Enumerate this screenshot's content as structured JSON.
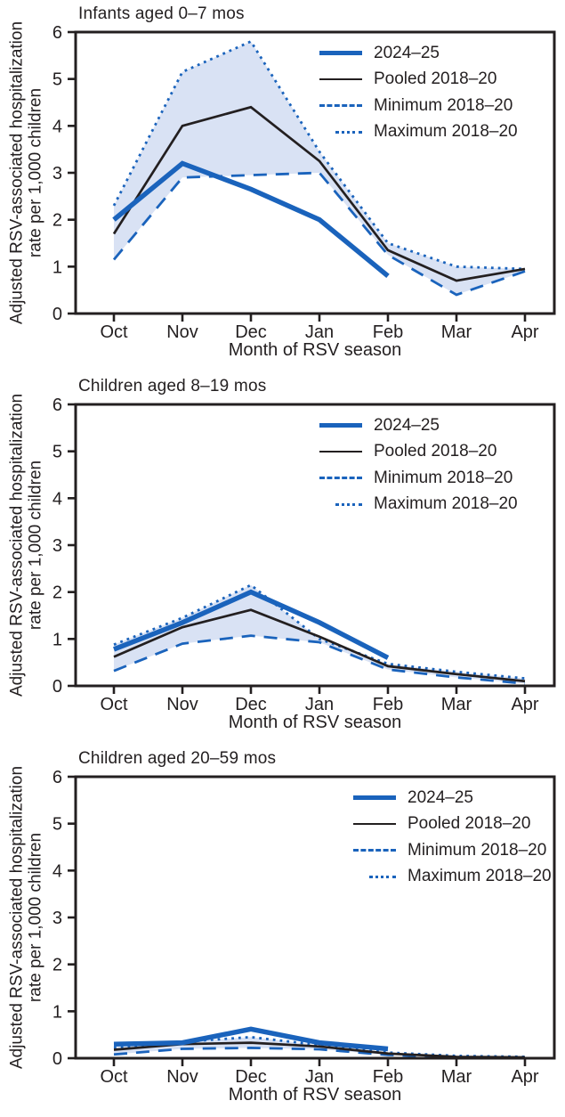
{
  "colors": {
    "blue": "#1A63BC",
    "black": "#231F20",
    "band_fill": "#D9E2F4"
  },
  "chart_data": [
    {
      "type": "line",
      "title": "Infants aged 0–7 mos",
      "xlabel": "Month of RSV season",
      "ylabel": "Adjusted RSV-associated hospitalization rate per 1,000 children",
      "ylabel_line1": "Adjusted RSV-associated hospitalization",
      "ylabel_line2": "rate per 1,000 children",
      "categories": [
        "Oct",
        "Nov",
        "Dec",
        "Jan",
        "Feb",
        "Mar",
        "Apr"
      ],
      "yticks": [
        0,
        1,
        2,
        3,
        4,
        5,
        6
      ],
      "ylim": [
        0,
        6
      ],
      "grid": "off",
      "legend_position": "top-right",
      "band_between": [
        "Minimum 2018–20",
        "Maximum 2018–20"
      ],
      "series": [
        {
          "name": "2024–25",
          "style": "thick-blue",
          "values": [
            2.0,
            3.2,
            2.65,
            2.0,
            0.8,
            null,
            null
          ]
        },
        {
          "name": "Pooled 2018–20",
          "style": "solid-black",
          "values": [
            1.7,
            4.0,
            4.4,
            3.25,
            1.35,
            0.7,
            0.95
          ]
        },
        {
          "name": "Minimum 2018–20",
          "style": "dashed-blue",
          "values": [
            1.15,
            2.9,
            2.95,
            3.0,
            1.25,
            0.4,
            0.9
          ]
        },
        {
          "name": "Maximum 2018–20",
          "style": "dotted-blue",
          "values": [
            2.3,
            5.15,
            5.8,
            3.45,
            1.5,
            1.0,
            0.95
          ]
        }
      ]
    },
    {
      "type": "line",
      "title": "Children aged 8–19 mos",
      "xlabel": "Month of RSV season",
      "ylabel": "Adjusted RSV-associated hospitalization rate per 1,000 children",
      "ylabel_line1": "Adjusted RSV-associated hospitalization",
      "ylabel_line2": "rate per 1,000 children",
      "categories": [
        "Oct",
        "Nov",
        "Dec",
        "Jan",
        "Feb",
        "Mar",
        "Apr"
      ],
      "yticks": [
        0,
        1,
        2,
        3,
        4,
        5,
        6
      ],
      "ylim": [
        0,
        6
      ],
      "grid": "off",
      "legend_position": "top-right",
      "band_between": [
        "Minimum 2018–20",
        "Maximum 2018–20"
      ],
      "series": [
        {
          "name": "2024–25",
          "style": "thick-blue",
          "values": [
            0.78,
            1.35,
            2.0,
            1.35,
            0.6,
            null,
            null
          ]
        },
        {
          "name": "Pooled 2018–20",
          "style": "solid-black",
          "values": [
            0.62,
            1.25,
            1.62,
            1.05,
            0.42,
            0.25,
            0.1
          ]
        },
        {
          "name": "Minimum 2018–20",
          "style": "dashed-blue",
          "values": [
            0.32,
            0.9,
            1.07,
            0.93,
            0.35,
            0.18,
            0.05
          ]
        },
        {
          "name": "Maximum 2018–20",
          "style": "dotted-blue",
          "values": [
            0.88,
            1.45,
            2.15,
            1.0,
            0.47,
            0.3,
            0.16
          ]
        }
      ]
    },
    {
      "type": "line",
      "title": "Children aged 20–59 mos",
      "xlabel": "Month of RSV season",
      "ylabel": "Adjusted RSV-associated hospitalization rate per 1,000 children",
      "ylabel_line1": "Adjusted RSV-associated hospitalization",
      "ylabel_line2": "rate per 1,000 children",
      "categories": [
        "Oct",
        "Nov",
        "Dec",
        "Jan",
        "Feb",
        "Mar",
        "Apr"
      ],
      "yticks": [
        0,
        1,
        2,
        3,
        4,
        5,
        6
      ],
      "ylim": [
        0,
        6
      ],
      "grid": "off",
      "legend_position": "top-right",
      "band_between": [
        "Minimum 2018–20",
        "Maximum 2018–20"
      ],
      "series": [
        {
          "name": "2024–25",
          "style": "thick-blue",
          "values": [
            0.3,
            0.33,
            0.62,
            0.33,
            0.2,
            null,
            null
          ]
        },
        {
          "name": "Pooled 2018–20",
          "style": "solid-black",
          "values": [
            0.18,
            0.3,
            0.33,
            0.25,
            0.1,
            0.03,
            0.02
          ]
        },
        {
          "name": "Minimum 2018–20",
          "style": "dashed-blue",
          "values": [
            0.08,
            0.2,
            0.22,
            0.19,
            0.07,
            0.02,
            0.01
          ]
        },
        {
          "name": "Maximum 2018–20",
          "style": "dotted-blue",
          "values": [
            0.22,
            0.35,
            0.45,
            0.28,
            0.12,
            0.05,
            0.03
          ]
        }
      ]
    }
  ]
}
